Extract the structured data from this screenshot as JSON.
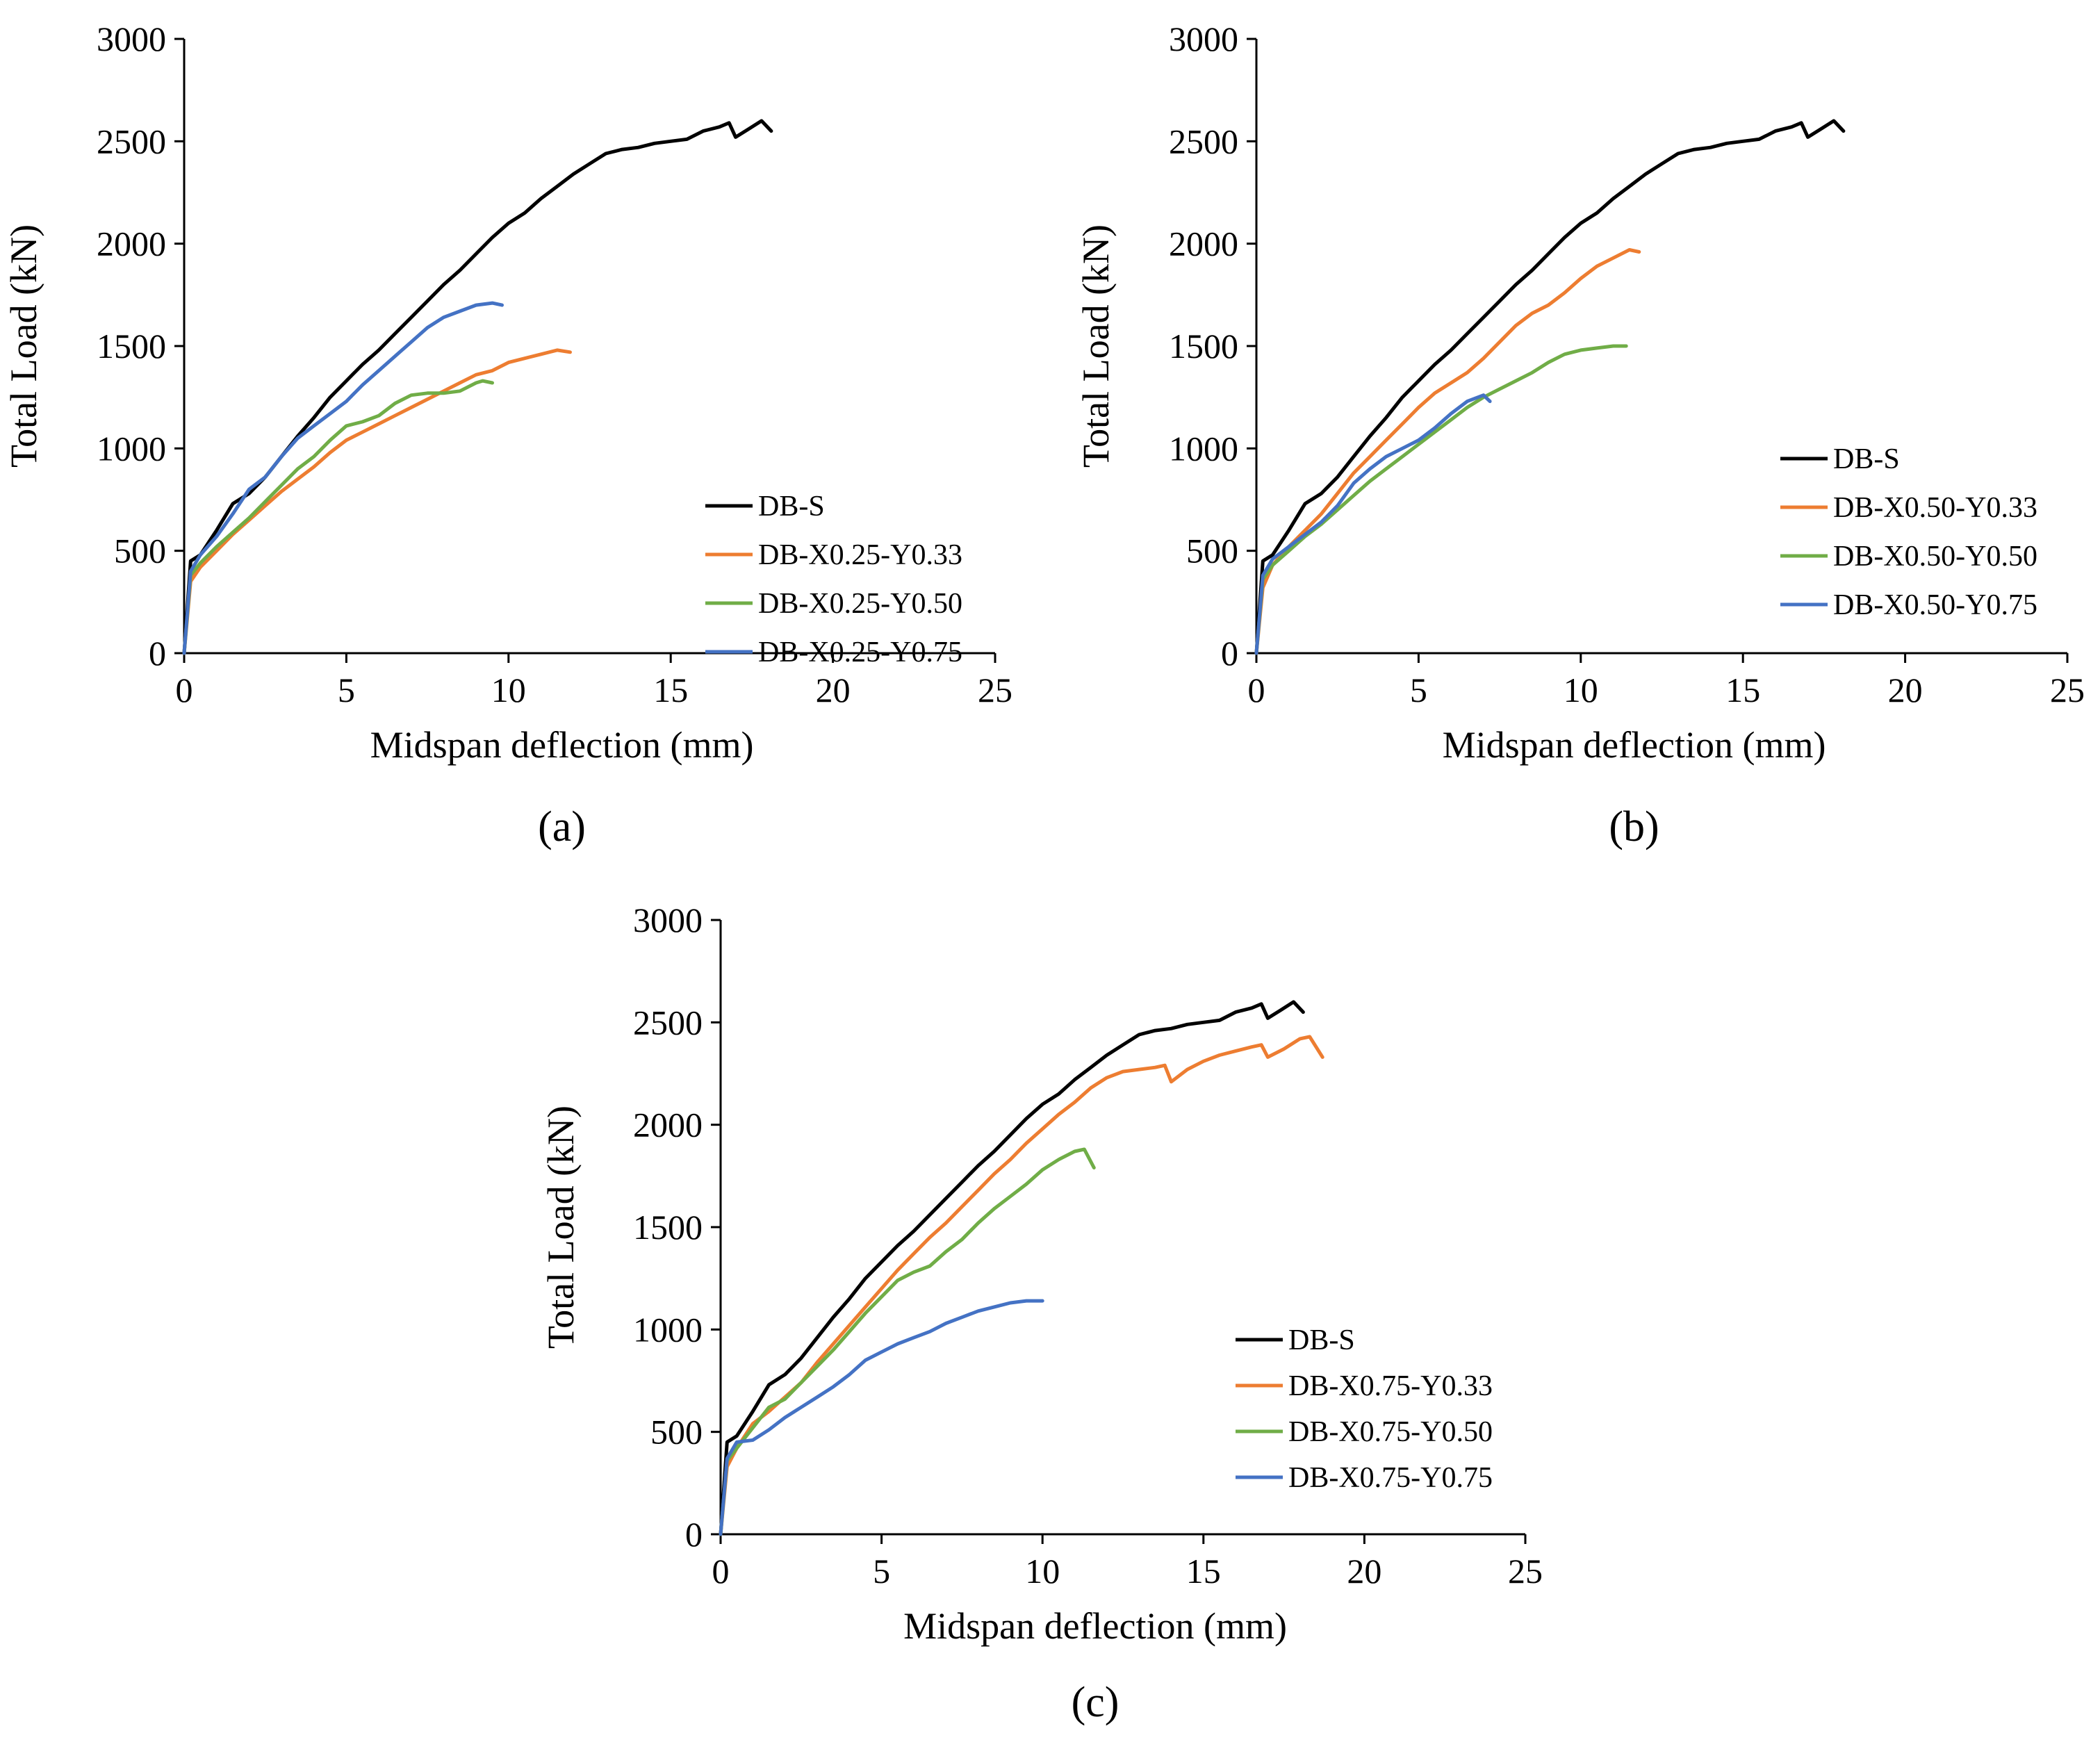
{
  "chart_data": [
    {
      "type": "line",
      "panel_label": "(a)",
      "title": "",
      "xlabel": "Midspan deflection (mm)",
      "ylabel": "Total Load (kN)",
      "xlim": [
        0,
        25
      ],
      "ylim": [
        0,
        3000
      ],
      "xticks": [
        0,
        5,
        10,
        15,
        20,
        25
      ],
      "yticks": [
        0,
        500,
        1000,
        1500,
        2000,
        2500,
        3000
      ],
      "grid": false,
      "legend_position": "bottom-right",
      "series": [
        {
          "name": "DB-S",
          "color": "#000000",
          "x": [
            0,
            0.2,
            0.5,
            1,
            1.5,
            2,
            2.5,
            3,
            3.5,
            4,
            4.5,
            5,
            5.5,
            6,
            6.5,
            7,
            7.5,
            8,
            8.5,
            9,
            9.5,
            10,
            10.5,
            11,
            11.5,
            12,
            12.5,
            13,
            13.5,
            14,
            14.5,
            15,
            15.5,
            16,
            16.5,
            16.8,
            17,
            17.4,
            17.8,
            18.1
          ],
          "y": [
            0,
            450,
            480,
            600,
            730,
            780,
            860,
            960,
            1060,
            1150,
            1250,
            1330,
            1410,
            1480,
            1560,
            1640,
            1720,
            1800,
            1870,
            1950,
            2030,
            2100,
            2150,
            2220,
            2280,
            2340,
            2390,
            2440,
            2460,
            2470,
            2490,
            2500,
            2510,
            2550,
            2570,
            2590,
            2520,
            2560,
            2600,
            2550
          ]
        },
        {
          "name": "DB-X0.25-Y0.33",
          "color": "#ED7D31",
          "x": [
            0,
            0.2,
            0.5,
            1,
            1.5,
            2,
            2.5,
            3,
            3.5,
            4,
            4.5,
            5,
            5.5,
            6,
            6.5,
            7,
            7.5,
            8,
            8.5,
            9,
            9.5,
            10,
            10.5,
            11,
            11.5,
            11.9
          ],
          "y": [
            0,
            350,
            420,
            500,
            580,
            650,
            720,
            790,
            850,
            910,
            980,
            1040,
            1080,
            1120,
            1160,
            1200,
            1240,
            1280,
            1320,
            1360,
            1380,
            1420,
            1440,
            1460,
            1480,
            1470
          ]
        },
        {
          "name": "DB-X0.25-Y0.50",
          "color": "#70AD47",
          "x": [
            0,
            0.2,
            0.5,
            1,
            1.5,
            2,
            2.5,
            3,
            3.5,
            4,
            4.5,
            5,
            5.5,
            6,
            6.5,
            7,
            7.5,
            8,
            8.5,
            9,
            9.2,
            9.5
          ],
          "y": [
            0,
            380,
            440,
            520,
            590,
            660,
            740,
            820,
            900,
            960,
            1040,
            1110,
            1130,
            1160,
            1220,
            1260,
            1270,
            1270,
            1280,
            1320,
            1330,
            1320
          ]
        },
        {
          "name": "DB-X0.25-Y0.75",
          "color": "#4472C4",
          "x": [
            0,
            0.2,
            0.5,
            1,
            1.5,
            2,
            2.5,
            3,
            3.5,
            4,
            4.5,
            5,
            5.5,
            6,
            6.5,
            7,
            7.5,
            8,
            8.5,
            9,
            9.5,
            9.8
          ],
          "y": [
            0,
            400,
            480,
            570,
            680,
            800,
            860,
            960,
            1050,
            1110,
            1170,
            1230,
            1310,
            1380,
            1450,
            1520,
            1590,
            1640,
            1670,
            1700,
            1710,
            1700
          ]
        }
      ]
    },
    {
      "type": "line",
      "panel_label": "(b)",
      "title": "",
      "xlabel": "Midspan deflection (mm)",
      "ylabel": "Total Load (kN)",
      "xlim": [
        0,
        25
      ],
      "ylim": [
        0,
        3000
      ],
      "xticks": [
        0,
        5,
        10,
        15,
        20,
        25
      ],
      "yticks": [
        0,
        500,
        1000,
        1500,
        2000,
        2500,
        3000
      ],
      "grid": false,
      "legend_position": "bottom-right",
      "series": [
        {
          "name": "DB-S",
          "color": "#000000",
          "x": [
            0,
            0.2,
            0.5,
            1,
            1.5,
            2,
            2.5,
            3,
            3.5,
            4,
            4.5,
            5,
            5.5,
            6,
            6.5,
            7,
            7.5,
            8,
            8.5,
            9,
            9.5,
            10,
            10.5,
            11,
            11.5,
            12,
            12.5,
            13,
            13.5,
            14,
            14.5,
            15,
            15.5,
            16,
            16.5,
            16.8,
            17,
            17.4,
            17.8,
            18.1
          ],
          "y": [
            0,
            450,
            480,
            600,
            730,
            780,
            860,
            960,
            1060,
            1150,
            1250,
            1330,
            1410,
            1480,
            1560,
            1640,
            1720,
            1800,
            1870,
            1950,
            2030,
            2100,
            2150,
            2220,
            2280,
            2340,
            2390,
            2440,
            2460,
            2470,
            2490,
            2500,
            2510,
            2550,
            2570,
            2590,
            2520,
            2560,
            2600,
            2550
          ]
        },
        {
          "name": "DB-X0.50-Y0.33",
          "color": "#ED7D31",
          "x": [
            0,
            0.2,
            0.5,
            1,
            1.5,
            2,
            2.5,
            3,
            3.5,
            4,
            4.5,
            5,
            5.5,
            6,
            6.5,
            7,
            7.5,
            8,
            8.5,
            9,
            9.5,
            10,
            10.5,
            11,
            11.5,
            11.8
          ],
          "y": [
            0,
            320,
            430,
            520,
            600,
            680,
            780,
            880,
            960,
            1040,
            1120,
            1200,
            1270,
            1320,
            1370,
            1440,
            1520,
            1600,
            1660,
            1700,
            1760,
            1830,
            1890,
            1930,
            1970,
            1960
          ]
        },
        {
          "name": "DB-X0.50-Y0.50",
          "color": "#70AD47",
          "x": [
            0,
            0.2,
            0.5,
            1,
            1.5,
            2,
            2.5,
            3,
            3.5,
            4,
            4.5,
            5,
            5.5,
            6,
            6.5,
            7,
            7.5,
            8,
            8.5,
            9,
            9.5,
            10,
            10.5,
            11,
            11.4
          ],
          "y": [
            0,
            360,
            430,
            500,
            570,
            630,
            700,
            770,
            840,
            900,
            960,
            1020,
            1080,
            1140,
            1200,
            1250,
            1290,
            1330,
            1370,
            1420,
            1460,
            1480,
            1490,
            1500,
            1500
          ]
        },
        {
          "name": "DB-X0.50-Y0.75",
          "color": "#4472C4",
          "x": [
            0,
            0.2,
            0.5,
            1,
            1.5,
            2,
            2.5,
            3,
            3.5,
            4,
            4.5,
            5,
            5.5,
            6,
            6.5,
            7,
            7.2
          ],
          "y": [
            0,
            380,
            460,
            520,
            580,
            640,
            720,
            830,
            900,
            960,
            1000,
            1040,
            1100,
            1170,
            1230,
            1260,
            1230
          ]
        }
      ]
    },
    {
      "type": "line",
      "panel_label": "(c)",
      "title": "",
      "xlabel": "Midspan deflection (mm)",
      "ylabel": "Total Load (kN)",
      "xlim": [
        0,
        25
      ],
      "ylim": [
        0,
        3000
      ],
      "xticks": [
        0,
        5,
        10,
        15,
        20,
        25
      ],
      "yticks": [
        0,
        500,
        1000,
        1500,
        2000,
        2500,
        3000
      ],
      "grid": false,
      "legend_position": "bottom-right",
      "series": [
        {
          "name": "DB-S",
          "color": "#000000",
          "x": [
            0,
            0.2,
            0.5,
            1,
            1.5,
            2,
            2.5,
            3,
            3.5,
            4,
            4.5,
            5,
            5.5,
            6,
            6.5,
            7,
            7.5,
            8,
            8.5,
            9,
            9.5,
            10,
            10.5,
            11,
            11.5,
            12,
            12.5,
            13,
            13.5,
            14,
            14.5,
            15,
            15.5,
            16,
            16.5,
            16.8,
            17,
            17.4,
            17.8,
            18.1
          ],
          "y": [
            0,
            450,
            480,
            600,
            730,
            780,
            860,
            960,
            1060,
            1150,
            1250,
            1330,
            1410,
            1480,
            1560,
            1640,
            1720,
            1800,
            1870,
            1950,
            2030,
            2100,
            2150,
            2220,
            2280,
            2340,
            2390,
            2440,
            2460,
            2470,
            2490,
            2500,
            2510,
            2550,
            2570,
            2590,
            2520,
            2560,
            2600,
            2550
          ]
        },
        {
          "name": "DB-X0.75-Y0.33",
          "color": "#ED7D31",
          "x": [
            0,
            0.2,
            0.5,
            1,
            1.5,
            2,
            2.5,
            3,
            3.5,
            4,
            4.5,
            5,
            5.5,
            6,
            6.5,
            7,
            7.5,
            8,
            8.5,
            9,
            9.5,
            10,
            10.5,
            11,
            11.5,
            12,
            12.5,
            13,
            13.5,
            13.8,
            14,
            14.5,
            15,
            15.5,
            16,
            16.5,
            16.8,
            17,
            17.5,
            18,
            18.3,
            18.7
          ],
          "y": [
            0,
            330,
            420,
            540,
            600,
            670,
            740,
            840,
            930,
            1020,
            1110,
            1200,
            1290,
            1370,
            1450,
            1520,
            1600,
            1680,
            1760,
            1830,
            1910,
            1980,
            2050,
            2110,
            2180,
            2230,
            2260,
            2270,
            2280,
            2290,
            2210,
            2270,
            2310,
            2340,
            2360,
            2380,
            2390,
            2330,
            2370,
            2420,
            2430,
            2330
          ]
        },
        {
          "name": "DB-X0.75-Y0.50",
          "color": "#70AD47",
          "x": [
            0,
            0.2,
            0.5,
            1,
            1.5,
            2,
            2.5,
            3,
            3.5,
            4,
            4.5,
            5,
            5.5,
            6,
            6.5,
            7,
            7.5,
            8,
            8.5,
            9,
            9.5,
            10,
            10.5,
            11,
            11.3,
            11.6
          ],
          "y": [
            0,
            360,
            420,
            520,
            620,
            660,
            740,
            820,
            900,
            990,
            1080,
            1160,
            1240,
            1280,
            1310,
            1380,
            1440,
            1520,
            1590,
            1650,
            1710,
            1780,
            1830,
            1870,
            1880,
            1790
          ]
        },
        {
          "name": "DB-X0.75-Y0.75",
          "color": "#4472C4",
          "x": [
            0,
            0.2,
            0.5,
            1,
            1.5,
            2,
            2.5,
            3,
            3.5,
            4,
            4.5,
            5,
            5.5,
            6,
            6.5,
            7,
            7.5,
            8,
            8.5,
            9,
            9.5,
            10
          ],
          "y": [
            0,
            370,
            450,
            460,
            510,
            570,
            620,
            670,
            720,
            780,
            850,
            890,
            930,
            960,
            990,
            1030,
            1060,
            1090,
            1110,
            1130,
            1140,
            1140
          ]
        }
      ]
    }
  ]
}
